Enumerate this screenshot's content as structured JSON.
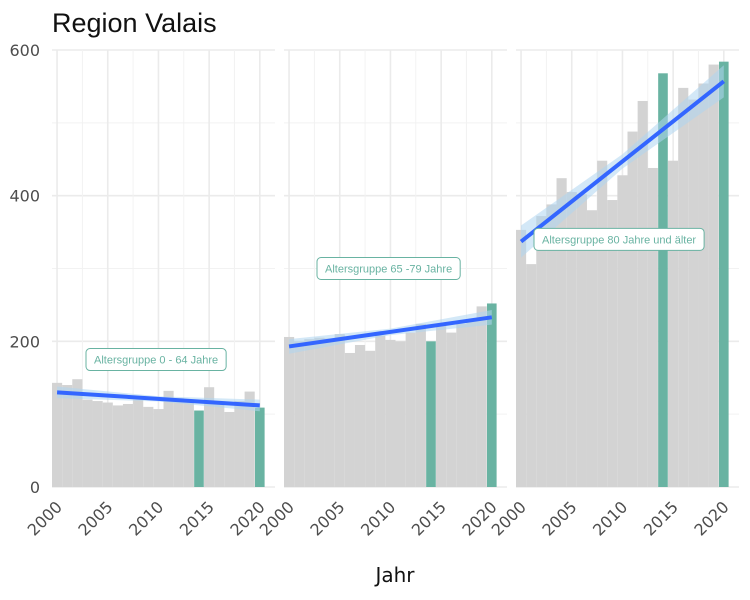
{
  "chart_data": {
    "type": "bar",
    "title": "Region Valais",
    "xlabel": "Jahr",
    "ylabel": "",
    "ylim": [
      0,
      600
    ],
    "y_ticks": [
      0,
      200,
      400,
      600
    ],
    "x_ticks": [
      2000,
      2005,
      2010,
      2015,
      2020
    ],
    "x_tick_labels": [
      "2000",
      "2005",
      "2010",
      "2015",
      "2020"
    ],
    "grid": true,
    "colors": {
      "bar": "#d3d3d3",
      "highlight": "#69b3a2",
      "trend": "#3366ff",
      "ribbon": "#aed6f1"
    },
    "years": [
      2000,
      2001,
      2002,
      2003,
      2004,
      2005,
      2006,
      2007,
      2008,
      2009,
      2010,
      2011,
      2012,
      2013,
      2014,
      2015,
      2016,
      2017,
      2018,
      2019,
      2020
    ],
    "highlight_years": [
      2014,
      2020
    ],
    "panels": [
      {
        "annotation": "Altersgruppe 0 - 64 Jahre",
        "values": [
          143,
          140,
          148,
          120,
          118,
          116,
          112,
          114,
          120,
          110,
          107,
          132,
          122,
          118,
          105,
          137,
          115,
          103,
          118,
          131,
          109
        ],
        "trend": {
          "start": [
            2000,
            130
          ],
          "end": [
            2020,
            112
          ]
        }
      },
      {
        "annotation": "Altersgruppe 65 -79 Jahre",
        "values": [
          206,
          200,
          203,
          205,
          204,
          210,
          184,
          195,
          187,
          208,
          202,
          200,
          212,
          224,
          200,
          222,
          212,
          224,
          228,
          248,
          252
        ],
        "trend": {
          "start": [
            2000,
            193
          ],
          "end": [
            2020,
            233
          ]
        }
      },
      {
        "annotation": "Altersgruppe 80 Jahre und älter",
        "values": [
          353,
          306,
          372,
          388,
          424,
          405,
          402,
          380,
          448,
          394,
          428,
          488,
          530,
          438,
          568,
          448,
          548,
          532,
          554,
          580,
          584
        ],
        "trend": {
          "start": [
            2000,
            337
          ],
          "end": [
            2020,
            557
          ]
        }
      }
    ]
  }
}
